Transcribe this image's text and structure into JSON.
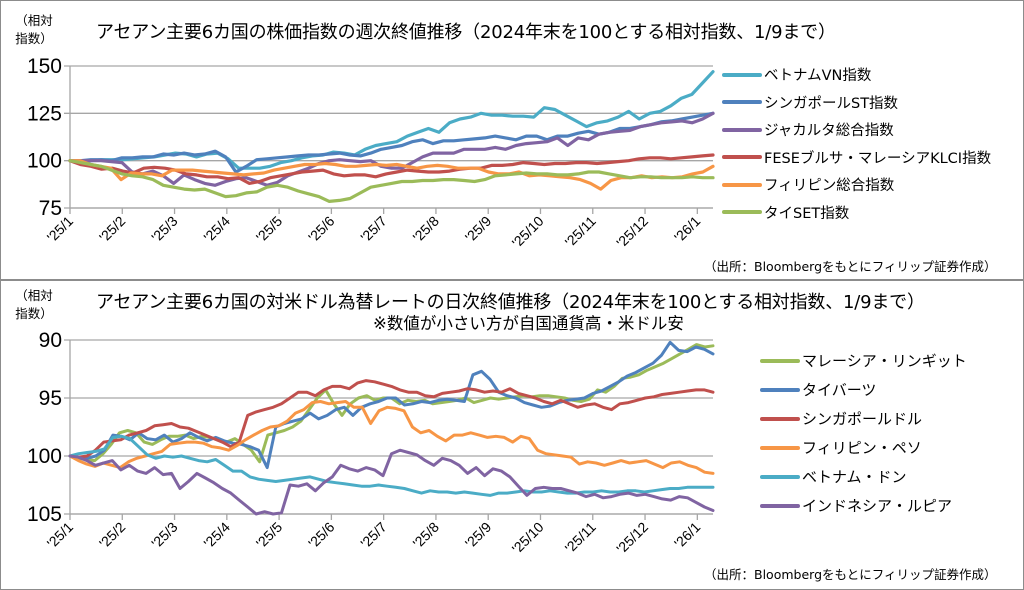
{
  "chart_data": [
    {
      "type": "line",
      "title": "アセアン主要6カ国の株価指数の週次終値推移（2024年末を100とする相対指数、1/9まで）",
      "ylabel": "（相対指数）",
      "xlabel": "",
      "ylim": [
        75,
        150
      ],
      "yticks": [
        75,
        100,
        125,
        150
      ],
      "ytick_labels": [
        "75",
        "100",
        "125",
        "150"
      ],
      "xtick_labels": [
        "'25/1",
        "'25/2",
        "'25/3",
        "'25/4",
        "'25/5",
        "'25/6",
        "'25/7",
        "'25/8",
        "'25/9",
        "'25/10",
        "'25/11",
        "'25/12",
        "'26/1"
      ],
      "x_range_months": [
        0,
        12.3
      ],
      "grid": true,
      "legend": "right",
      "source": "（出所：Bloombergをもとにフィリップ証券作成）",
      "frequency": "weekly",
      "series": [
        {
          "name": "ベトナムVN指数",
          "color": "#4bacc6",
          "values": [
            100,
            99.5,
            100,
            100.5,
            100.5,
            100.5,
            101,
            101.5,
            102,
            103,
            104,
            103.5,
            102,
            103.5,
            104,
            101,
            96,
            96,
            96,
            97,
            99,
            100,
            101.5,
            102.5,
            103,
            104.5,
            104,
            103,
            106,
            108,
            109,
            110,
            113,
            115,
            117,
            115,
            120,
            122,
            123,
            125,
            124,
            124,
            123.5,
            123.5,
            123,
            128,
            127,
            124,
            121,
            118,
            120,
            121,
            123,
            126,
            122,
            125,
            126,
            129,
            133,
            135,
            141,
            147
          ]
        },
        {
          "name": "シンガポールST指数",
          "color": "#4f81bd",
          "values": [
            100,
            100,
            100.5,
            100.5,
            100,
            101.5,
            101.5,
            102,
            102,
            103.5,
            103,
            104,
            103,
            103.5,
            105,
            102,
            94,
            97,
            100.5,
            101,
            101.5,
            102,
            102.5,
            103,
            103,
            103.5,
            104,
            103,
            102.5,
            104,
            106,
            107,
            108,
            110,
            111,
            109,
            110.5,
            110.5,
            111,
            111.5,
            112,
            113,
            112,
            111,
            113,
            113,
            111,
            113,
            113,
            114.5,
            115.5,
            114,
            115,
            117,
            117,
            118,
            119,
            120.5,
            121,
            122,
            123,
            124,
            125
          ]
        },
        {
          "name": "ジャカルタ総合指数",
          "color": "#8064a2",
          "values": [
            100,
            100,
            100,
            100,
            99.5,
            99,
            94,
            93,
            94.5,
            92,
            88,
            92.5,
            90,
            88,
            87,
            89,
            90.5,
            91,
            89,
            87,
            88.5,
            92,
            94,
            96,
            98.5,
            100,
            100.5,
            100,
            99.5,
            100,
            97,
            96,
            96,
            99,
            102,
            104,
            104,
            104,
            106,
            106,
            106,
            107,
            106,
            108,
            109,
            109.5,
            110,
            112,
            108,
            112,
            111,
            114,
            115,
            115.5,
            116,
            118,
            119,
            120,
            120.5,
            121,
            120,
            122,
            125
          ]
        },
        {
          "name": "FESEブルサ・マレーシアKLCI指数",
          "color": "#c0504d",
          "values": [
            100,
            98,
            97,
            95.5,
            96,
            94.5,
            93.5,
            96,
            96.5,
            96,
            95,
            93,
            92.5,
            91.5,
            91.5,
            90.5,
            91,
            88,
            89,
            91,
            92,
            93,
            94,
            94.5,
            95,
            93,
            92,
            92.5,
            92.5,
            91.5,
            93,
            94,
            95,
            94.5,
            94,
            94,
            94.5,
            95.5,
            96,
            96,
            97.5,
            97.5,
            98,
            99,
            98.5,
            98,
            98.5,
            98.5,
            99,
            99,
            98.5,
            99,
            99.5,
            100,
            101,
            101.5,
            101.5,
            101,
            101.5,
            102,
            102.5,
            103
          ]
        },
        {
          "name": "フィリピン総合指数",
          "color": "#f79646",
          "values": [
            100,
            100,
            98,
            97,
            96,
            90,
            93.5,
            93,
            93,
            92,
            95,
            95,
            95,
            94.5,
            94,
            93.5,
            93,
            92.5,
            93,
            93.5,
            95,
            96,
            97,
            98,
            98,
            98.5,
            98,
            97,
            97,
            97.5,
            98,
            97.5,
            98,
            97,
            96,
            97,
            97.5,
            97,
            96,
            96,
            96,
            94,
            93,
            93,
            94,
            92,
            92.5,
            92,
            91.5,
            91,
            90,
            88,
            85,
            89.5,
            91,
            91,
            92,
            91,
            91.5,
            91,
            91.5,
            93,
            94,
            97
          ]
        },
        {
          "name": "タイSET指数",
          "color": "#9bbb59",
          "values": [
            100,
            99,
            98,
            97,
            95,
            93,
            92,
            91.5,
            90,
            87,
            86,
            85,
            84.5,
            85,
            83,
            81,
            81.5,
            83,
            83.5,
            86,
            87,
            86,
            84,
            82.5,
            81,
            78.5,
            79,
            80,
            83,
            86,
            87,
            88,
            89,
            89,
            89.5,
            89.5,
            90,
            90,
            89.5,
            89,
            90,
            92,
            92.5,
            93,
            93.5,
            93,
            93,
            92.5,
            92.5,
            93,
            94,
            94,
            93,
            92,
            91,
            91.5,
            91.5,
            91,
            91,
            91,
            91.5,
            91,
            91
          ]
        }
      ]
    },
    {
      "type": "line",
      "title": "アセアン主要6カ国の対米ドル為替レートの日次終値推移（2024年末を100とする相対指数、1/9まで）",
      "subtitle": "※数値が小さい方が自国通貨高・米ドル安",
      "ylabel": "（相対指数）",
      "xlabel": "",
      "ylim": [
        105,
        90
      ],
      "y_inverted": true,
      "yticks": [
        90,
        95,
        100,
        105
      ],
      "ytick_labels": [
        "90",
        "95",
        "100",
        "105"
      ],
      "xtick_labels": [
        "'25/1",
        "'25/2",
        "'25/3",
        "'25/4",
        "'25/5",
        "'25/6",
        "'25/7",
        "'25/8",
        "'25/9",
        "'25/10",
        "'25/11",
        "'25/12",
        "'26/1"
      ],
      "x_range_months": [
        0,
        12.3
      ],
      "grid": true,
      "legend": "right",
      "source": "（出所：Bloombergをもとにフィリップ証券作成）",
      "frequency": "daily (sampled)",
      "series": [
        {
          "name": "マレーシア・リンギット",
          "color": "#9bbb59",
          "values": [
            100,
            100.2,
            100.3,
            100.4,
            99.8,
            99,
            98,
            97.8,
            98,
            98.8,
            99,
            98.6,
            98.3,
            98.3,
            98.2,
            98.5,
            98.3,
            98.4,
            98.6,
            98.8,
            98.5,
            99,
            99.5,
            100.5,
            98.2,
            98,
            97.8,
            97.5,
            97,
            96,
            95,
            94.3,
            95.5,
            96.5,
            95.5,
            95,
            94.8,
            95.2,
            95,
            95,
            95.5,
            95.2,
            95.3,
            95.2,
            95.5,
            95.4,
            95.3,
            95.2,
            95,
            95.4,
            95.2,
            95,
            95.1,
            95,
            94.9,
            94.8,
            94.9,
            94.8,
            94.8,
            94.9,
            95,
            95.2,
            95.3,
            95.1,
            94.3,
            94.5,
            94,
            93.3,
            93.2,
            93,
            92.6,
            92.3,
            92,
            91.6,
            91.2,
            90.8,
            90.4,
            90.6,
            90.5
          ]
        },
        {
          "name": "タイバーツ",
          "color": "#4f81bd",
          "values": [
            100,
            100.1,
            100.2,
            100,
            99.5,
            98.2,
            98.3,
            98.6,
            98,
            98.5,
            98.6,
            98.2,
            98.8,
            98.5,
            98,
            98.4,
            98.7,
            98.4,
            98.7,
            98.9,
            99,
            99.2,
            99.5,
            101,
            97.5,
            97.2,
            97,
            96.8,
            96.3,
            96.8,
            96.5,
            96,
            95.8,
            96.5,
            95.8,
            95.5,
            95.3,
            95,
            95,
            95.6,
            95.5,
            95.3,
            95.4,
            95.2,
            95.1,
            95.2,
            95.3,
            93,
            92.7,
            93.4,
            94.5,
            94.8,
            95,
            95.4,
            95.6,
            95.8,
            95.7,
            95.4,
            95.2,
            95.1,
            95,
            94.6,
            94.4,
            94,
            93.6,
            93.1,
            92.8,
            92.4,
            92,
            91.3,
            90.2,
            90.9,
            91,
            90.6,
            90.8,
            91.2
          ]
        },
        {
          "name": "シンガポールドル",
          "color": "#c0504d",
          "values": [
            100,
            100.1,
            100,
            99.5,
            98.8,
            98.7,
            98.6,
            98.2,
            98,
            97.8,
            97.4,
            97.3,
            97.2,
            97.5,
            97.6,
            97.9,
            98.2,
            98.5,
            98.8,
            99.2,
            98.8,
            96.5,
            96.2,
            96,
            95.8,
            95.5,
            95,
            94.5,
            94.5,
            94.8,
            94.3,
            94,
            94,
            94.2,
            93.7,
            93.5,
            93.6,
            93.8,
            94,
            94.3,
            94.5,
            94.5,
            94.8,
            94.9,
            94.6,
            94.5,
            94.4,
            94.2,
            94.3,
            94.5,
            94.4,
            94.5,
            94.2,
            94.6,
            94.8,
            95,
            95.3,
            95.5,
            95.2,
            95.5,
            95.8,
            95.6,
            95.5,
            95.8,
            96,
            95.5,
            95.4,
            95.2,
            95,
            94.9,
            94.7,
            94.6,
            94.5,
            94.4,
            94.3,
            94.3,
            94.5
          ]
        },
        {
          "name": "フィリピン・ペソ",
          "color": "#f79646",
          "values": [
            100,
            100.4,
            100.7,
            100.9,
            100.6,
            100.8,
            101,
            100.5,
            100.2,
            100,
            99.8,
            99.6,
            99,
            98.9,
            98.8,
            98.8,
            98.9,
            99.2,
            99.3,
            99.5,
            99.1,
            98.6,
            98.2,
            97.8,
            97.5,
            97.4,
            97,
            96.3,
            96,
            95.4,
            95.3,
            95.5,
            95.4,
            95.3,
            95.8,
            95.8,
            97.2,
            96.1,
            95.8,
            95.9,
            96.1,
            97.5,
            98,
            97.8,
            98.3,
            98.7,
            98.2,
            98.2,
            98,
            98.2,
            98.4,
            98.3,
            98.4,
            98.8,
            98.3,
            98.5,
            99.5,
            99.8,
            99.9,
            100,
            100.1,
            100.7,
            100.5,
            100.6,
            100.8,
            100.6,
            100.4,
            100.6,
            100.5,
            100.4,
            100.7,
            101,
            100.6,
            100.5,
            100.8,
            101,
            101.4,
            101.5
          ]
        },
        {
          "name": "ベトナム・ドン",
          "color": "#4bacc6",
          "values": [
            100,
            99.8,
            99.7,
            99.6,
            99.4,
            98.4,
            98.3,
            98.5,
            99.2,
            99.9,
            100.2,
            100,
            100.1,
            100,
            100.2,
            100.4,
            100.5,
            100.3,
            100.8,
            101.3,
            101.3,
            101.8,
            102,
            102.1,
            102.2,
            102.1,
            102,
            101.9,
            101.8,
            102,
            102.2,
            102.3,
            102.4,
            102.5,
            102.6,
            102.6,
            102.5,
            102.6,
            102.7,
            102.8,
            103,
            103.2,
            103,
            103.1,
            103.1,
            103.2,
            103.1,
            103.2,
            103.3,
            103.4,
            103.2,
            103.2,
            103.1,
            103,
            103.1,
            103.1,
            103,
            103.1,
            103.2,
            103.2,
            103.1,
            103.1,
            103,
            103.1,
            103.1,
            103,
            103.0,
            103.1,
            103,
            102.9,
            102.8,
            102.8,
            102.7,
            102.7,
            102.7,
            102.7
          ]
        },
        {
          "name": "インドネシア・ルピア",
          "color": "#8064a2",
          "values": [
            100,
            100.1,
            100.4,
            100.8,
            100.6,
            100.4,
            101.2,
            100.8,
            101.3,
            101.5,
            101,
            101.6,
            101.5,
            102.8,
            102.2,
            101.5,
            101.9,
            102.3,
            102.8,
            103.2,
            103.8,
            104.4,
            105,
            104.8,
            105,
            104.9,
            102.5,
            102.6,
            102.4,
            103,
            102.3,
            101.8,
            100.8,
            101.1,
            101.3,
            101,
            101.2,
            101.7,
            99.8,
            99.5,
            99.7,
            99.9,
            100.4,
            100.8,
            100.2,
            100.4,
            100.8,
            101.5,
            101,
            101.7,
            101.1,
            101.3,
            101.8,
            102.6,
            103.4,
            102.8,
            102.7,
            102.8,
            102.8,
            103,
            103.2,
            103.5,
            103.3,
            103.6,
            103.5,
            103.3,
            103.2,
            103.4,
            103.3,
            103.5,
            103.7,
            103.8,
            103.5,
            103.6,
            104,
            104.4,
            104.7
          ]
        }
      ]
    }
  ],
  "page": {
    "top": {
      "unit_label_1": "（相対",
      "unit_label_2": "指数）",
      "title": "アセアン主要6カ国の株価指数の週次終値推移（2024年末を100とする相対指数、1/9まで）",
      "source": "（出所：Bloombergをもとにフィリップ証券作成）"
    },
    "bottom": {
      "unit_label_1": "（相対",
      "unit_label_2": "指数）",
      "title": "アセアン主要6カ国の対米ドル為替レートの日次終値推移（2024年末を100とする相対指数、1/9まで）",
      "subtitle": "※数値が小さい方が自国通貨高・米ドル安",
      "source": "（出所：Bloombergをもとにフィリップ証券作成）"
    }
  }
}
